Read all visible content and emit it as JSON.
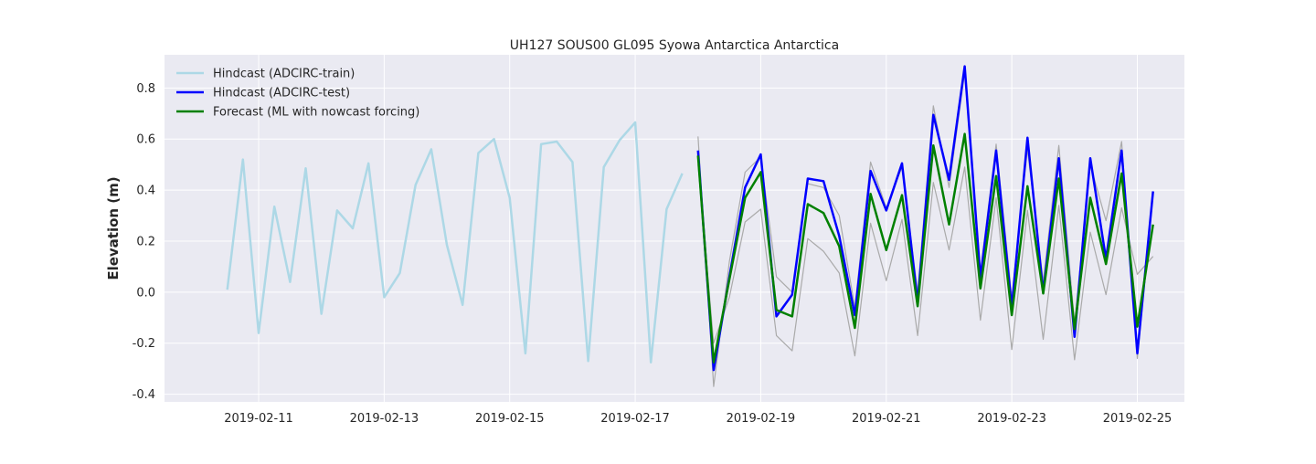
{
  "chart_data": {
    "type": "line",
    "title": "UH127 SOUS00 GL095 Syowa Antarctica Antarctica",
    "xlabel": "",
    "ylabel": "Elevation (m)",
    "xlim": [
      "2019-02-09T12:00",
      "2019-02-25T18:00"
    ],
    "ylim": [
      -0.43,
      0.93
    ],
    "x_ticks": [
      "2019-02-11",
      "2019-02-13",
      "2019-02-15",
      "2019-02-17",
      "2019-02-19",
      "2019-02-21",
      "2019-02-23",
      "2019-02-25"
    ],
    "y_ticks": [
      -0.4,
      -0.2,
      0.0,
      0.2,
      0.4,
      0.6,
      0.8
    ],
    "grid": true,
    "legend_position": "top-left",
    "legend": [
      "Hindcast (ADCIRC-train)",
      "Hindcast (ADCIRC-test)",
      "Forecast (ML with nowcast forcing)"
    ],
    "colors": {
      "train": "#add8e6",
      "test": "#0000ff",
      "forecast": "#008000",
      "ensemble": "#aaaaaa",
      "background": "#eaeaf2",
      "grid": "#ffffff"
    },
    "series": [
      {
        "name": "Hindcast (ADCIRC-train)",
        "color": "#add8e6",
        "x": [
          "2019-02-10T12:00",
          "2019-02-10T18:00",
          "2019-02-11T00:00",
          "2019-02-11T06:00",
          "2019-02-11T12:00",
          "2019-02-11T18:00",
          "2019-02-12T00:00",
          "2019-02-12T06:00",
          "2019-02-12T12:00",
          "2019-02-12T18:00",
          "2019-02-13T00:00",
          "2019-02-13T06:00",
          "2019-02-13T12:00",
          "2019-02-13T18:00",
          "2019-02-14T00:00",
          "2019-02-14T06:00",
          "2019-02-14T12:00",
          "2019-02-14T18:00",
          "2019-02-15T00:00",
          "2019-02-15T06:00",
          "2019-02-15T12:00",
          "2019-02-15T18:00",
          "2019-02-16T00:00",
          "2019-02-16T06:00",
          "2019-02-16T12:00",
          "2019-02-16T18:00",
          "2019-02-17T00:00",
          "2019-02-17T06:00",
          "2019-02-17T12:00",
          "2019-02-17T18:00"
        ],
        "y": [
          0.01,
          0.52,
          -0.16,
          0.335,
          0.04,
          0.485,
          -0.085,
          0.32,
          0.25,
          0.505,
          -0.02,
          0.075,
          0.42,
          0.56,
          0.185,
          -0.05,
          0.545,
          0.6,
          0.37,
          -0.24,
          0.58,
          0.59,
          0.51,
          -0.27,
          0.49,
          0.595,
          0.665,
          -0.275,
          0.325,
          0.465
        ]
      },
      {
        "name": "Hindcast (ADCIRC-test)",
        "color": "#0000ff",
        "x": [
          "2019-02-18T00:00",
          "2019-02-18T06:00",
          "2019-02-18T12:00",
          "2019-02-18T18:00",
          "2019-02-19T00:00",
          "2019-02-19T06:00",
          "2019-02-19T12:00",
          "2019-02-19T18:00",
          "2019-02-20T00:00",
          "2019-02-20T06:00",
          "2019-02-20T12:00",
          "2019-02-20T18:00",
          "2019-02-21T00:00",
          "2019-02-21T06:00",
          "2019-02-21T12:00",
          "2019-02-21T18:00",
          "2019-02-22T00:00",
          "2019-02-22T06:00",
          "2019-02-22T12:00",
          "2019-02-22T18:00",
          "2019-02-23T00:00",
          "2019-02-23T06:00",
          "2019-02-23T12:00",
          "2019-02-23T18:00",
          "2019-02-24T00:00",
          "2019-02-24T06:00",
          "2019-02-24T12:00",
          "2019-02-24T18:00",
          "2019-02-25T00:00",
          "2019-02-25T06:00"
        ],
        "y": [
          0.555,
          -0.305,
          0.06,
          0.41,
          0.54,
          -0.095,
          -0.01,
          0.445,
          0.435,
          0.22,
          -0.09,
          0.475,
          0.32,
          0.505,
          -0.04,
          0.695,
          0.44,
          0.885,
          0.055,
          0.555,
          -0.06,
          0.605,
          0.0,
          0.525,
          -0.175,
          0.525,
          0.13,
          0.555,
          -0.24,
          0.395
        ]
      },
      {
        "name": "Forecast (ML with nowcast forcing)",
        "color": "#008000",
        "x": [
          "2019-02-18T00:00",
          "2019-02-18T06:00",
          "2019-02-18T12:00",
          "2019-02-18T18:00",
          "2019-02-19T00:00",
          "2019-02-19T06:00",
          "2019-02-19T12:00",
          "2019-02-19T18:00",
          "2019-02-20T00:00",
          "2019-02-20T06:00",
          "2019-02-20T12:00",
          "2019-02-20T18:00",
          "2019-02-21T00:00",
          "2019-02-21T06:00",
          "2019-02-21T12:00",
          "2019-02-21T18:00",
          "2019-02-22T00:00",
          "2019-02-22T06:00",
          "2019-02-22T12:00",
          "2019-02-22T18:00",
          "2019-02-23T00:00",
          "2019-02-23T06:00",
          "2019-02-23T12:00",
          "2019-02-23T18:00",
          "2019-02-24T00:00",
          "2019-02-24T06:00",
          "2019-02-24T12:00",
          "2019-02-24T18:00",
          "2019-02-25T00:00",
          "2019-02-25T06:00"
        ],
        "y": [
          0.535,
          -0.275,
          0.05,
          0.37,
          0.47,
          -0.07,
          -0.095,
          0.345,
          0.31,
          0.18,
          -0.14,
          0.385,
          0.165,
          0.38,
          -0.055,
          0.575,
          0.265,
          0.62,
          0.015,
          0.455,
          -0.09,
          0.415,
          -0.005,
          0.445,
          -0.145,
          0.37,
          0.11,
          0.465,
          -0.135,
          0.265
        ]
      },
      {
        "color": "#aaaaaa",
        "x": [
          "2019-02-18T00:00",
          "2019-02-18T06:00",
          "2019-02-18T12:00",
          "2019-02-18T18:00",
          "2019-02-19T00:00",
          "2019-02-19T06:00",
          "2019-02-19T12:00",
          "2019-02-19T18:00",
          "2019-02-20T00:00",
          "2019-02-20T06:00",
          "2019-02-20T12:00",
          "2019-02-20T18:00",
          "2019-02-21T00:00",
          "2019-02-21T06:00",
          "2019-02-21T12:00",
          "2019-02-21T18:00",
          "2019-02-22T00:00",
          "2019-02-22T06:00",
          "2019-02-22T12:00",
          "2019-02-22T18:00",
          "2019-02-23T00:00",
          "2019-02-23T06:00",
          "2019-02-23T12:00",
          "2019-02-23T18:00",
          "2019-02-24T00:00",
          "2019-02-24T06:00",
          "2019-02-24T12:00",
          "2019-02-24T18:00",
          "2019-02-25T00:00",
          "2019-02-25T06:00"
        ],
        "y": [
          0.61,
          -0.37,
          0.12,
          0.47,
          0.53,
          0.06,
          0.0,
          0.425,
          0.41,
          0.3,
          -0.06,
          0.51,
          0.33,
          0.49,
          0.0,
          0.73,
          0.41,
          0.86,
          0.08,
          0.58,
          -0.02,
          0.56,
          0.04,
          0.575,
          -0.12,
          0.5,
          0.28,
          0.59,
          -0.26,
          0.38
        ]
      },
      {
        "color": "#aaaaaa",
        "x": [
          "2019-02-18T00:00",
          "2019-02-18T06:00",
          "2019-02-18T12:00",
          "2019-02-18T18:00",
          "2019-02-19T00:00",
          "2019-02-19T06:00",
          "2019-02-19T12:00",
          "2019-02-19T18:00",
          "2019-02-20T00:00",
          "2019-02-20T06:00",
          "2019-02-20T12:00",
          "2019-02-20T18:00",
          "2019-02-21T00:00",
          "2019-02-21T06:00",
          "2019-02-21T12:00",
          "2019-02-21T18:00",
          "2019-02-22T00:00",
          "2019-02-22T06:00",
          "2019-02-22T12:00",
          "2019-02-22T18:00",
          "2019-02-23T00:00",
          "2019-02-23T06:00",
          "2019-02-23T12:00",
          "2019-02-23T18:00",
          "2019-02-24T00:00",
          "2019-02-24T06:00",
          "2019-02-24T12:00",
          "2019-02-24T18:00",
          "2019-02-25T00:00",
          "2019-02-25T06:00"
        ],
        "y": [
          0.5,
          -0.2,
          -0.02,
          0.275,
          0.325,
          -0.17,
          -0.23,
          0.21,
          0.16,
          0.075,
          -0.25,
          0.27,
          0.045,
          0.285,
          -0.17,
          0.43,
          0.165,
          0.49,
          -0.11,
          0.37,
          -0.225,
          0.32,
          -0.185,
          0.34,
          -0.265,
          0.235,
          -0.01,
          0.33,
          0.07,
          0.14
        ]
      }
    ]
  }
}
